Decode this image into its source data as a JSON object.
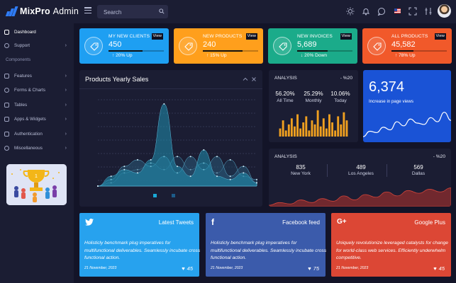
{
  "app": {
    "brand_bold": "MixPro",
    "brand_light": "Admin"
  },
  "topbar": {
    "search_placeholder": "Search"
  },
  "sidebar": {
    "items": [
      {
        "label": "Dashboard",
        "active": true,
        "chevron": false
      },
      {
        "label": "Support",
        "active": false,
        "chevron": true
      }
    ],
    "section": "Components",
    "component_items": [
      {
        "label": "Features"
      },
      {
        "label": "Forms & Charts"
      },
      {
        "label": "Tables"
      },
      {
        "label": "Apps & Widgets"
      },
      {
        "label": "Authentication"
      },
      {
        "label": "Miscellaneous"
      }
    ]
  },
  "stats": [
    {
      "label": "MY NEW CLIENTS",
      "value": "450",
      "delta": "20% Up",
      "arrow": "up",
      "view": "View",
      "progress": 0.62,
      "color": "#1e9ff2",
      "icon": "tag-icon"
    },
    {
      "label": "NEW PRODUCTS",
      "value": "240",
      "delta": "15% Up",
      "arrow": "up",
      "view": "View",
      "progress": 0.72,
      "color": "#ff9f1c",
      "icon": "tag-icon"
    },
    {
      "label": "NEW INVOICES",
      "value": "5,689",
      "delta": "20% Down",
      "arrow": "down",
      "view": "View",
      "progress": 0.55,
      "color": "#1bab8a",
      "icon": "tag-icon"
    },
    {
      "label": "ALL PRODUCTS",
      "value": "45,582",
      "delta": "78% Up",
      "arrow": "up",
      "view": "View",
      "progress": 0.4,
      "color": "#f1592a",
      "icon": "tag-icon"
    }
  ],
  "products_chart": {
    "title": "Products Yearly Sales",
    "type": "area",
    "series": [
      {
        "color": "#1f8fb0",
        "values": [
          0,
          3,
          5,
          4,
          8,
          25,
          6,
          3,
          11,
          3,
          2,
          4,
          1
        ]
      },
      {
        "color": "#2a5a78",
        "values": [
          0,
          2,
          6,
          8,
          6,
          9,
          4,
          9,
          5,
          9,
          3,
          6,
          1
        ]
      },
      {
        "color": "#1f3d58",
        "values": [
          0,
          1,
          4,
          5,
          7,
          5,
          9,
          5,
          7,
          4,
          8,
          3,
          2
        ]
      }
    ],
    "ylim": [
      0,
      28
    ],
    "legend_colors": [
      "#19a8d6",
      "#1d5c8a"
    ]
  },
  "analysis_top": {
    "title": "ANALYSIS",
    "delta": "- %20",
    "columns": [
      {
        "value": "56.20%",
        "label": "All Time"
      },
      {
        "value": "25.29%",
        "label": "Monthly"
      },
      {
        "value": "10.06%",
        "label": "Today"
      }
    ],
    "chart_data": {
      "type": "bar",
      "color": "#f0a020",
      "values": [
        4,
        8,
        3,
        6,
        9,
        5,
        11,
        4,
        7,
        10,
        3,
        8,
        6,
        13,
        5,
        9,
        4,
        11,
        7,
        3,
        10,
        6,
        12,
        8
      ],
      "ylim": [
        0,
        14
      ]
    }
  },
  "page_views": {
    "value": "6,374",
    "label": "Increase in page views",
    "chart_data": {
      "type": "line",
      "values": [
        2,
        6,
        5,
        9,
        7,
        13,
        10,
        15,
        12,
        11,
        16,
        13,
        20,
        14
      ],
      "ylim": [
        0,
        24
      ]
    }
  },
  "analysis_bottom": {
    "title": "ANALYSIS",
    "delta": "- %20",
    "cities": [
      {
        "value": "835",
        "label": "New York"
      },
      {
        "value": "489",
        "label": "Los Angeles"
      },
      {
        "value": "569",
        "label": "Dallas"
      }
    ],
    "chart_data": {
      "type": "area",
      "color": "#b8322a",
      "values": [
        1,
        3,
        2,
        5,
        3,
        6,
        4,
        8,
        5,
        9,
        7,
        11,
        8,
        12,
        10,
        13,
        11,
        14
      ],
      "ylim": [
        0,
        18
      ]
    }
  },
  "social": [
    {
      "network": "twitter",
      "title": "Latest Tweets",
      "text": "Holisticly benchmark plug imperatives for multifunctional deliverables. Seamlessly incubate cross functional action.",
      "date": "21 November, 2023",
      "likes": "45",
      "color": "#27a2ee",
      "icon": "twitter-icon"
    },
    {
      "network": "facebook",
      "title": "Facebook feed",
      "text": "Holisticly benchmark plug imperatives for multifunctional deliverables. Seamlessly incubate cross functional action.",
      "date": "21 November, 2023",
      "likes": "75",
      "color": "#3b5bab",
      "icon": "facebook-icon"
    },
    {
      "network": "google",
      "title": "Google Plus",
      "text": "Uniquely revolutionize leveraged catalysts for change for world-class web services. Efficiently underwhelm competitive.",
      "date": "21 November, 2023",
      "likes": "45",
      "color": "#dc4735",
      "icon": "google-plus-icon"
    }
  ]
}
